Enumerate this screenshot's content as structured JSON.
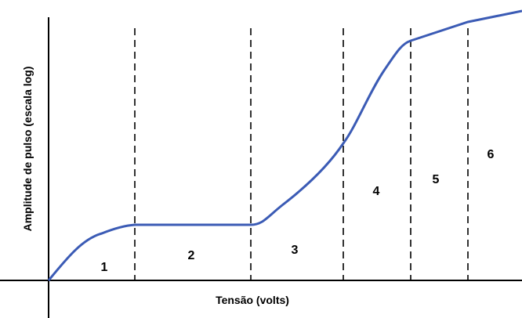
{
  "y_axis_label": "Amplitude de pulso (escala log)",
  "x_axis_label": "Tensão (volts)",
  "regions": [
    "1",
    "2",
    "3",
    "4",
    "5",
    "6"
  ]
}
